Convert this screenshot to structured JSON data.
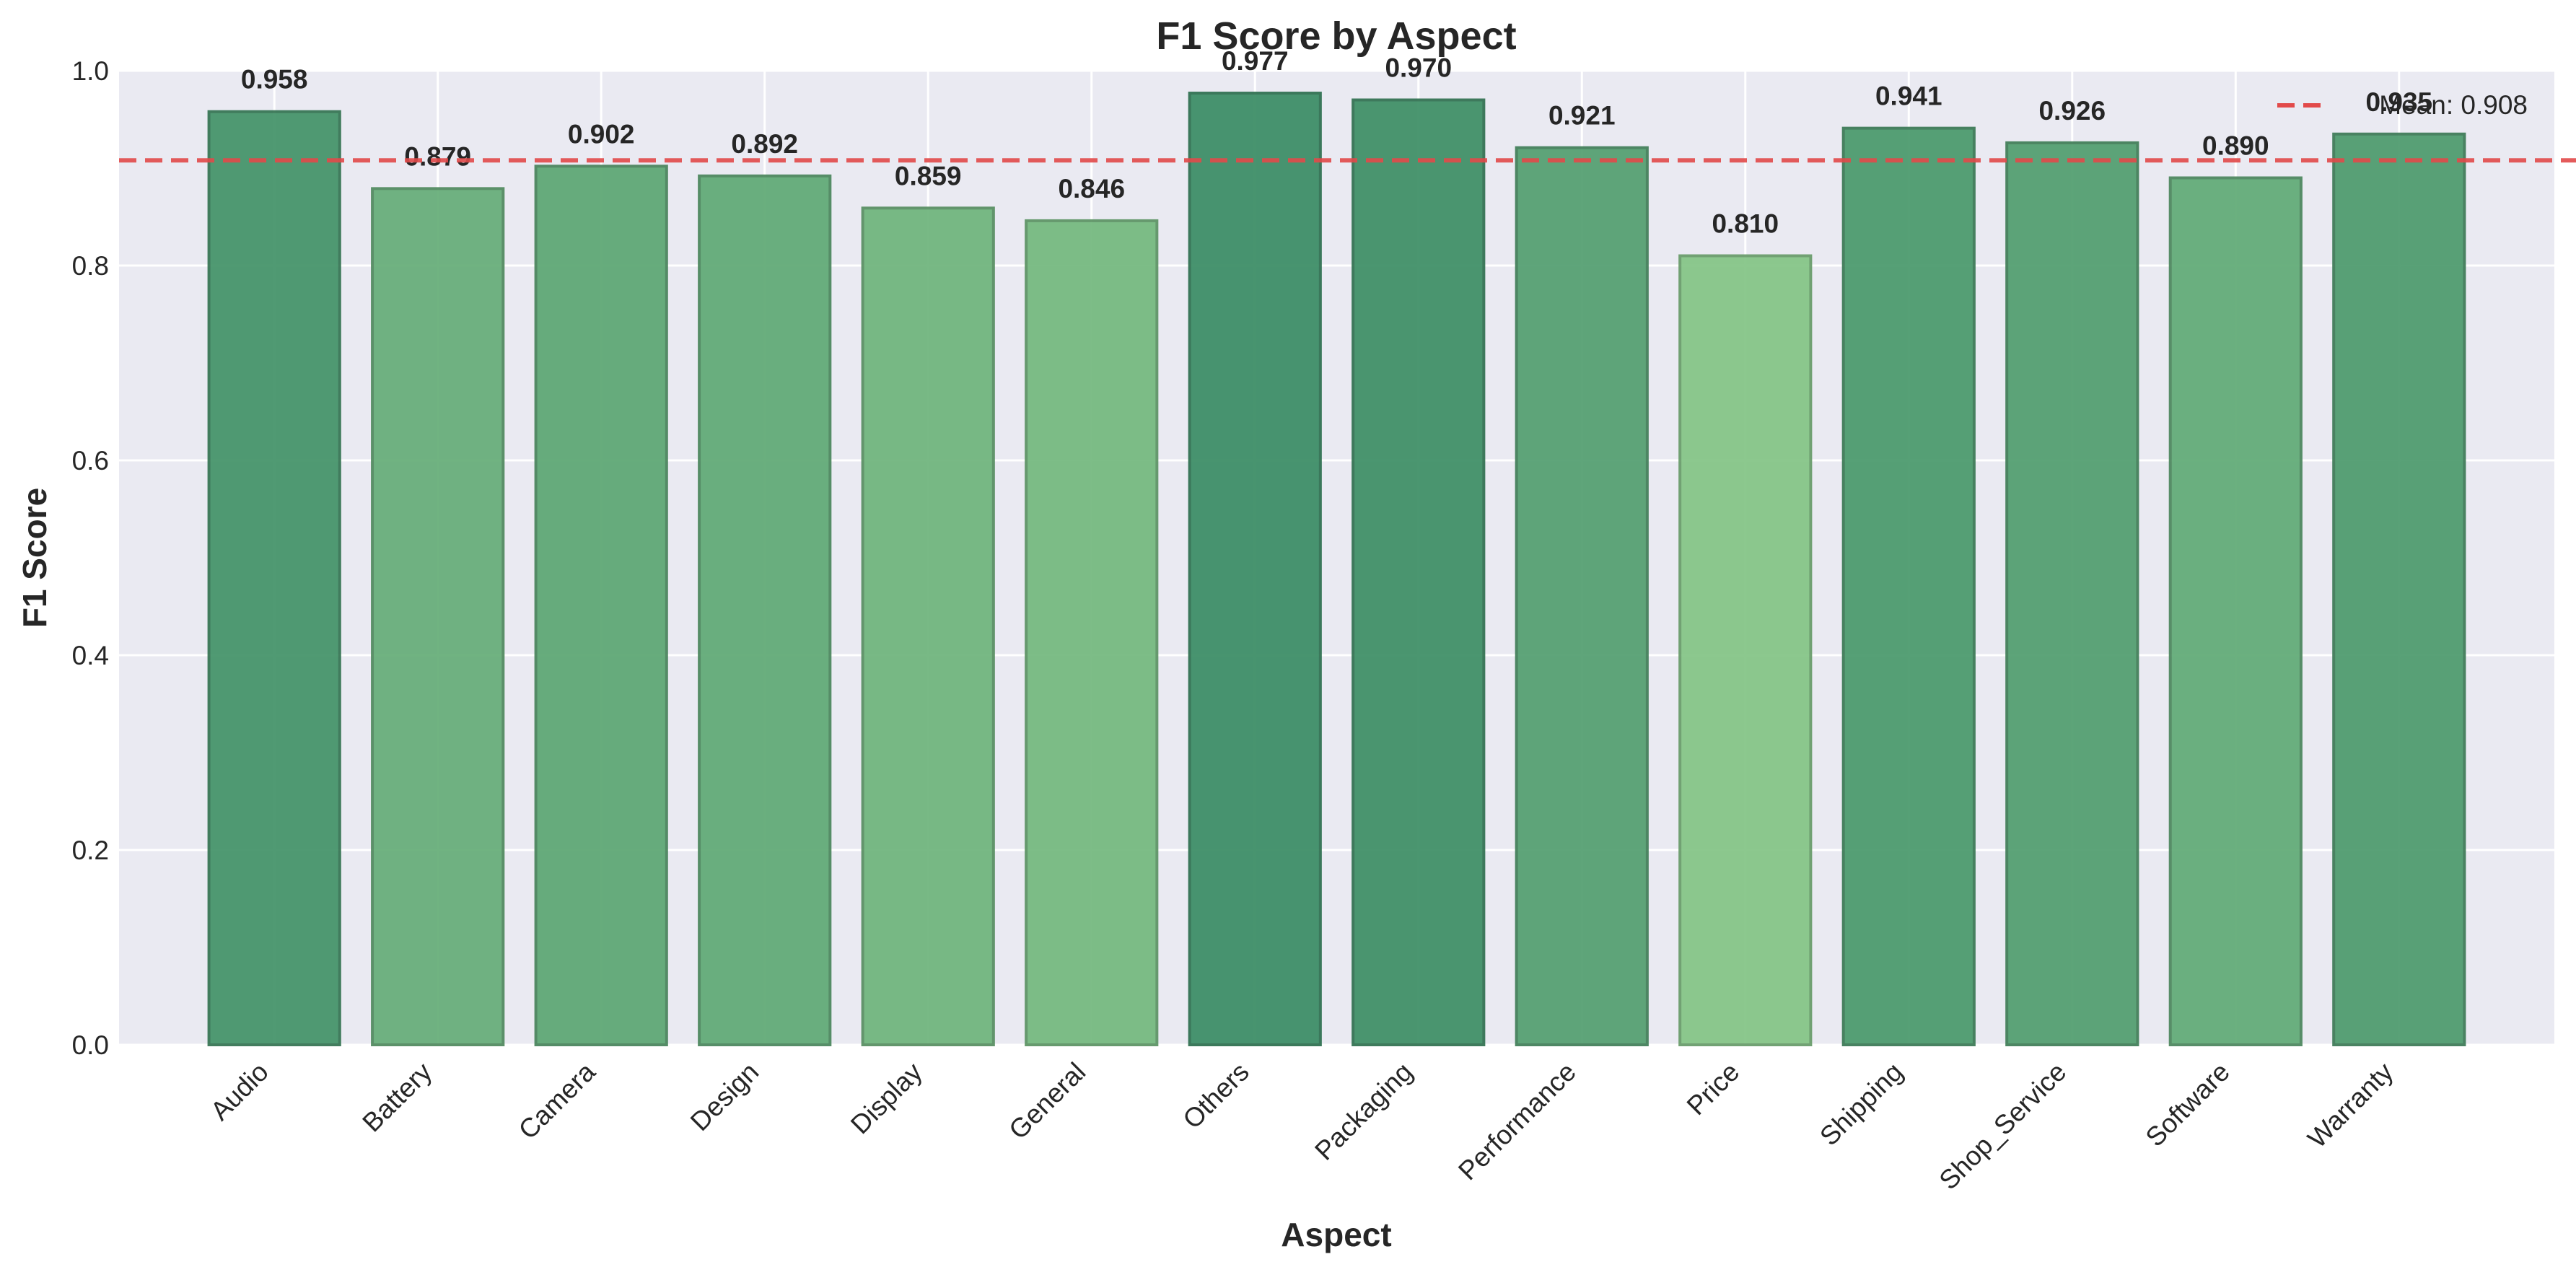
{
  "chart_data": {
    "type": "bar",
    "title": "F1 Score by Aspect",
    "xlabel": "Aspect",
    "ylabel": "F1 Score",
    "ylim": [
      0,
      1.0
    ],
    "yticks": [
      "0.0",
      "0.2",
      "0.4",
      "0.6",
      "0.8",
      "1.0"
    ],
    "categories": [
      "Audio",
      "Battery",
      "Camera",
      "Design",
      "Display",
      "General",
      "Others",
      "Packaging",
      "Performance",
      "Price",
      "Shipping",
      "Shop_Service",
      "Software",
      "Warranty"
    ],
    "values": [
      0.958,
      0.879,
      0.902,
      0.892,
      0.859,
      0.846,
      0.977,
      0.97,
      0.921,
      0.81,
      0.941,
      0.926,
      0.89,
      0.935
    ],
    "value_labels": [
      "0.958",
      "0.879",
      "0.902",
      "0.892",
      "0.859",
      "0.846",
      "0.977",
      "0.970",
      "0.921",
      "0.810",
      "0.941",
      "0.926",
      "0.890",
      "0.935"
    ],
    "mean_line": {
      "value": 0.908,
      "label": "Mean: 0.908",
      "color": "#e24a4a"
    },
    "legend": {
      "placement": "top-right"
    },
    "grid": true,
    "colors": {
      "low": "#86c688",
      "high": "#3f8f68",
      "background": "#eaeaf2",
      "grid": "#ffffff"
    }
  }
}
